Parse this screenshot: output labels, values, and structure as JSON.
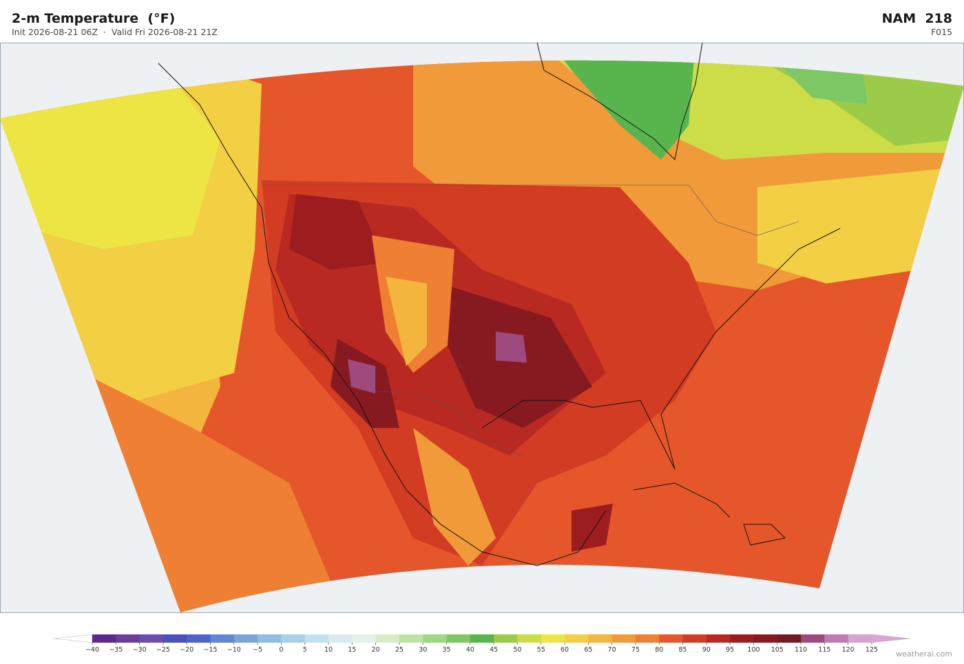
{
  "header": {
    "title": "2-m Temperature  (°F)",
    "subtitle": "Init 2026-08-21 06Z  ·  Valid Fri 2026-08-21 21Z",
    "model": "NAM  218",
    "forecast_hour": "F015"
  },
  "colorbar": {
    "ticks": [
      {
        "value": -40,
        "label": "−40"
      },
      {
        "value": -35,
        "label": "−35"
      },
      {
        "value": -30,
        "label": "−30"
      },
      {
        "value": -25,
        "label": "−25"
      },
      {
        "value": -20,
        "label": "−20"
      },
      {
        "value": -15,
        "label": "−15"
      },
      {
        "value": -10,
        "label": "−10"
      },
      {
        "value": -5,
        "label": "−5"
      },
      0,
      5,
      10,
      15,
      20,
      25,
      30,
      35,
      40,
      45,
      50,
      55,
      60,
      65,
      70,
      75,
      80,
      85,
      90,
      95,
      100,
      105,
      110,
      115,
      120,
      125
    ],
    "colors": [
      "#5b2a8c",
      "#6b3d9a",
      "#6a4fb0",
      "#4b4fc0",
      "#4f63cc",
      "#6385d4",
      "#7ea3d9",
      "#92bde0",
      "#a9d0e8",
      "#c2e0ee",
      "#d8ecf0",
      "#e3f3e8",
      "#d4edc6",
      "#bde3a0",
      "#9fd77f",
      "#7dc765",
      "#58b54e",
      "#9ccb4a",
      "#cddd48",
      "#ece544",
      "#f2cf43",
      "#f4b53f",
      "#f19a3a",
      "#ee7f33",
      "#e5572a",
      "#d23c23",
      "#b82a21",
      "#9d1c1f",
      "#871a20",
      "#751a23",
      "#9e4a7e",
      "#c27bb2",
      "#d6a3cf"
    ],
    "under_color": "#ffffff",
    "over_color": "#d9a6d4"
  },
  "footer": {
    "credit": "weatherai.com"
  }
}
